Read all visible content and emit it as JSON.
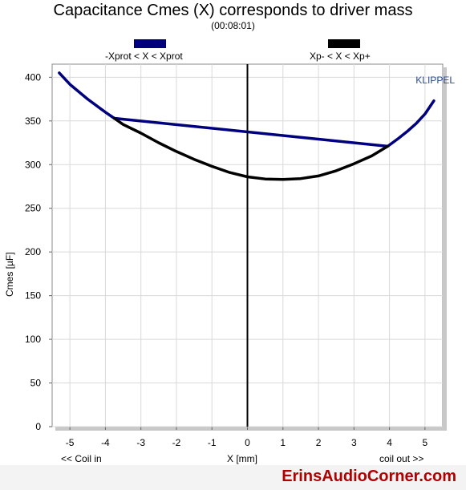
{
  "chart_data": {
    "type": "line",
    "title": "Capacitance Cmes (X) corresponds to driver mass",
    "subtitle": "(00:08:01)",
    "xlabel": "X [mm]",
    "ylabel": "Cmes [µF]",
    "xlim": [
      -5.5,
      5.5
    ],
    "ylim": [
      0,
      415
    ],
    "xticks": [
      -5,
      -4,
      -3,
      -2,
      -1,
      0,
      1,
      2,
      3,
      4,
      5
    ],
    "yticks": [
      0,
      50,
      100,
      150,
      200,
      250,
      300,
      350,
      400
    ],
    "grid": true,
    "legend_position": "top",
    "series": [
      {
        "name": "-Xprot < X < Xprot",
        "color": "#00007f",
        "x": [
          -5.3,
          -5.0,
          -4.5,
          -4.0,
          -3.75,
          3.95,
          4.25,
          4.5,
          4.75,
          5.0,
          5.25
        ],
        "y": [
          405,
          392,
          375,
          360,
          353,
          321,
          330,
          338,
          347,
          358,
          373
        ]
      },
      {
        "name": "Xp- < X < Xp+",
        "color": "#000000",
        "x": [
          -3.75,
          -3.5,
          -3.0,
          -2.5,
          -2.0,
          -1.5,
          -1.0,
          -0.5,
          0.0,
          0.5,
          1.0,
          1.5,
          2.0,
          2.5,
          3.0,
          3.5,
          3.95
        ],
        "y": [
          353,
          346,
          336,
          325,
          315,
          306,
          298,
          291,
          286,
          283.5,
          283,
          284,
          287,
          293,
          301,
          310,
          321
        ]
      }
    ],
    "zero_line_x": 0,
    "annotations": {
      "left": "<< Coil in",
      "right": "coil out >>",
      "watermark": "KLIPPEL"
    }
  },
  "banner": "ErinsAudioCorner.com"
}
